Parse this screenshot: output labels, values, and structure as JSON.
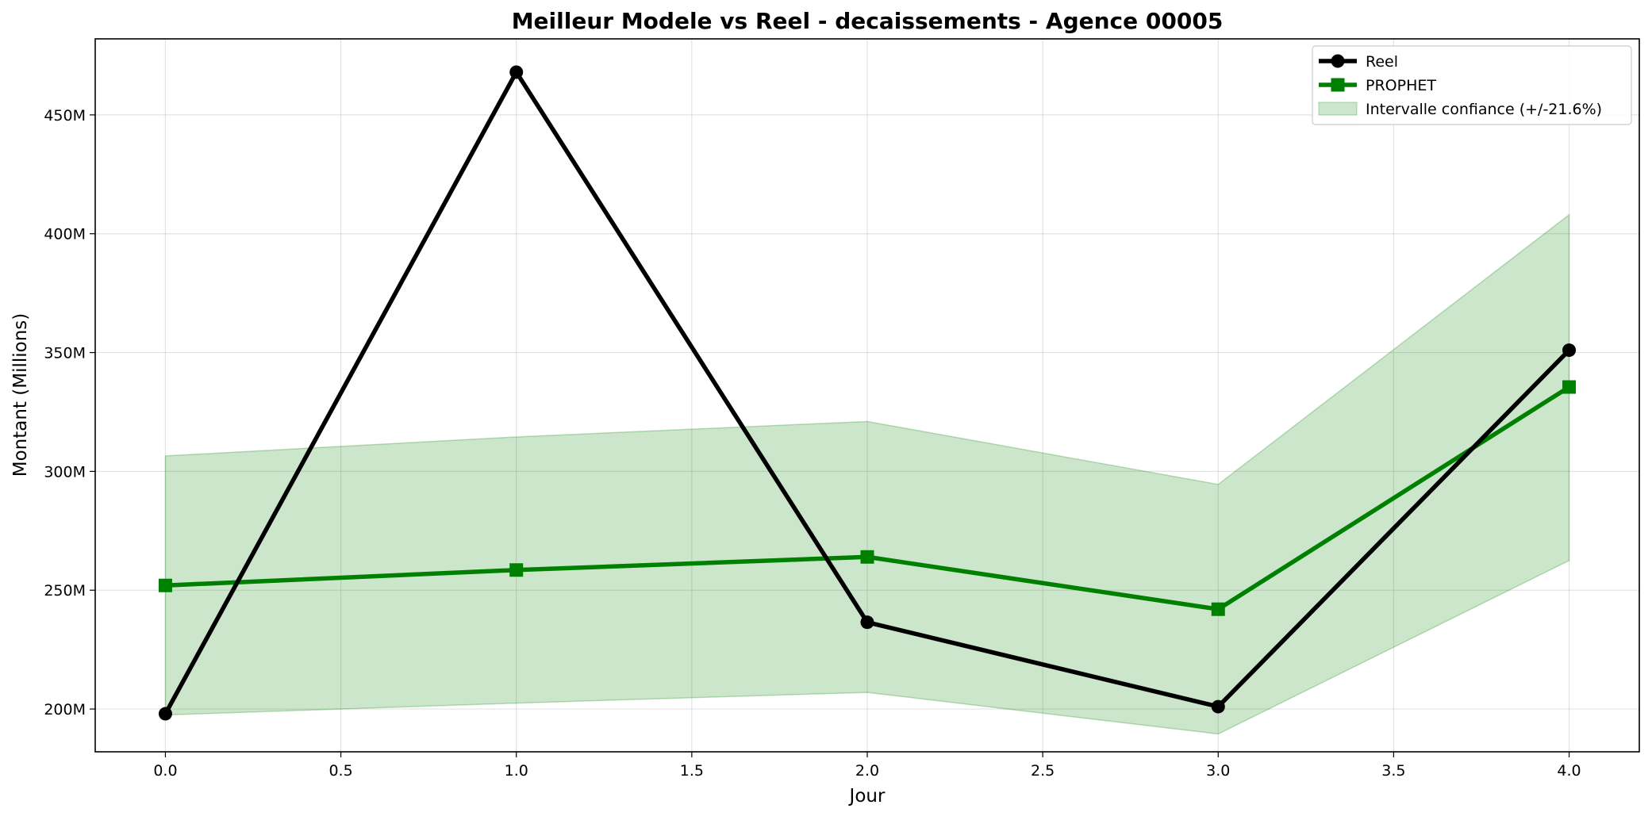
{
  "chart_data": {
    "type": "line",
    "title": "Meilleur Modele vs Reel - decaissements - Agence 00005",
    "xlabel": "Jour",
    "ylabel": "Montant (Millions)",
    "x": [
      0,
      1,
      2,
      3,
      4
    ],
    "xlim": [
      -0.2,
      4.2
    ],
    "ylim": [
      182,
      482
    ],
    "x_ticks": [
      0.0,
      0.5,
      1.0,
      1.5,
      2.0,
      2.5,
      3.0,
      3.5,
      4.0
    ],
    "x_tick_labels": [
      "0.0",
      "0.5",
      "1.0",
      "1.5",
      "2.0",
      "2.5",
      "3.0",
      "3.5",
      "4.0"
    ],
    "y_ticks": [
      200,
      250,
      300,
      350,
      400,
      450
    ],
    "y_tick_labels": [
      "200M",
      "250M",
      "300M",
      "350M",
      "400M",
      "450M"
    ],
    "grid": true,
    "legend_position": "top-right",
    "series": [
      {
        "name": "Reel",
        "kind": "line",
        "marker": "circle",
        "color": "#000000",
        "values": [
          198.0,
          468.0,
          236.5,
          201.0,
          351.0
        ]
      },
      {
        "name": "PROPHET",
        "kind": "line",
        "marker": "square",
        "color": "#008000",
        "values": [
          252.0,
          258.5,
          264.0,
          242.0,
          335.5
        ]
      },
      {
        "name": "Intervalle confiance (+/-21.6%)",
        "kind": "band",
        "color": "#008000",
        "lower": [
          197.5,
          202.5,
          207.0,
          189.5,
          262.5
        ],
        "upper": [
          306.5,
          314.5,
          321.0,
          294.5,
          408.0
        ]
      }
    ]
  }
}
